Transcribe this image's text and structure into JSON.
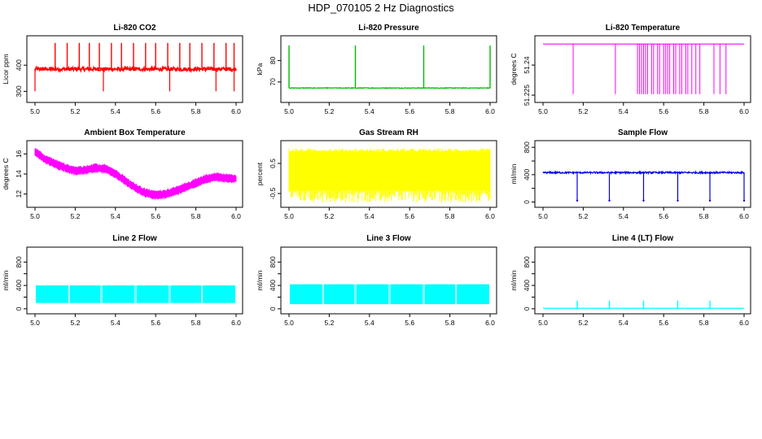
{
  "figure_title": "HDP_070105  2 Hz Diagnostics",
  "chart_data": [
    {
      "type": "line",
      "title": "Li-820 CO2",
      "xlabel": "",
      "ylabel": "Licor ppm",
      "color": "#ff0000",
      "xlim": [
        5.0,
        6.0
      ],
      "ylim": [
        270,
        500
      ],
      "x_ticks": [
        5.0,
        5.2,
        5.4,
        5.6,
        5.8,
        6.0
      ],
      "y_ticks": [
        300,
        400
      ],
      "series": [
        {
          "name": "CO2",
          "baseline": 385,
          "noise": 7,
          "spikes_up": [
            5.1,
            5.16,
            5.22,
            5.27,
            5.32,
            5.38,
            5.43,
            5.49,
            5.55,
            5.6,
            5.66,
            5.72,
            5.77,
            5.83,
            5.89,
            5.95,
            5.99
          ],
          "spike_up_value": 485,
          "spikes_down": [
            5.0,
            5.34,
            5.67,
            5.9,
            5.99
          ],
          "spike_down_value": 300
        }
      ]
    },
    {
      "type": "line",
      "title": "Li-820 Pressure",
      "xlabel": "",
      "ylabel": "kPa",
      "color": "#00bb00",
      "xlim": [
        5.0,
        6.0
      ],
      "ylim": [
        62,
        90
      ],
      "x_ticks": [
        5.0,
        5.2,
        5.4,
        5.6,
        5.8,
        6.0
      ],
      "y_ticks": [
        70,
        80
      ],
      "series": [
        {
          "name": "Pressure",
          "baseline": 67.2,
          "noise": 0.15,
          "spikes_up": [
            5.0,
            5.33,
            5.67,
            6.0
          ],
          "spike_up_value": 87
        }
      ]
    },
    {
      "type": "line",
      "title": "Li-820 Temperature",
      "xlabel": "",
      "ylabel": "degrees C",
      "color": "#ff00ff",
      "xlim": [
        5.0,
        6.0
      ],
      "ylim": [
        51.223,
        51.253
      ],
      "x_ticks": [
        5.0,
        5.2,
        5.4,
        5.6,
        5.8,
        6.0
      ],
      "y_ticks": [
        51.225,
        51.24
      ],
      "series": [
        {
          "name": "Temperature",
          "baseline": 51.2505,
          "drops": [
            5.15,
            5.36,
            5.47,
            5.48,
            5.49,
            5.5,
            5.51,
            5.52,
            5.54,
            5.55,
            5.57,
            5.58,
            5.6,
            5.61,
            5.62,
            5.63,
            5.65,
            5.66,
            5.68,
            5.69,
            5.71,
            5.72,
            5.74,
            5.76,
            5.78,
            5.85,
            5.88,
            5.91
          ],
          "drop_value": 51.2255
        }
      ]
    },
    {
      "type": "line",
      "title": "Ambient Box Temperature",
      "xlabel": "",
      "ylabel": "degrees C",
      "color": "#ff00ff",
      "xlim": [
        5.0,
        6.0
      ],
      "ylim": [
        11,
        17
      ],
      "x_ticks": [
        5.0,
        5.2,
        5.4,
        5.6,
        5.8,
        6.0
      ],
      "y_ticks": [
        12,
        14,
        16
      ],
      "series": [
        {
          "name": "Box Temperature",
          "x": [
            5.0,
            5.05,
            5.1,
            5.15,
            5.2,
            5.25,
            5.3,
            5.35,
            5.4,
            5.45,
            5.5,
            5.55,
            5.6,
            5.65,
            5.7,
            5.75,
            5.8,
            5.85,
            5.9,
            5.95,
            6.0
          ],
          "y": [
            16.2,
            15.5,
            15.0,
            14.6,
            14.3,
            14.4,
            14.6,
            14.5,
            14.0,
            13.3,
            12.6,
            12.1,
            11.9,
            12.0,
            12.3,
            12.7,
            13.1,
            13.5,
            13.7,
            13.6,
            13.5
          ],
          "noise": 0.35
        }
      ]
    },
    {
      "type": "line",
      "title": "Gas Stream RH",
      "xlabel": "",
      "ylabel": "percent",
      "color": "#ffff00",
      "xlim": [
        5.0,
        6.0
      ],
      "ylim": [
        -0.85,
        1.15
      ],
      "x_ticks": [
        5.0,
        5.2,
        5.4,
        5.6,
        5.8,
        6.0
      ],
      "y_ticks": [
        -0.5,
        0.5
      ],
      "series": [
        {
          "name": "RH",
          "low": -0.4,
          "high": 0.9,
          "min_extreme": -0.8,
          "max_extreme": 1.0
        }
      ]
    },
    {
      "type": "line",
      "title": "Sample Flow",
      "xlabel": "",
      "ylabel": "ml/min",
      "color": "#0000dd",
      "xlim": [
        5.0,
        6.0
      ],
      "ylim": [
        -30,
        850
      ],
      "x_ticks": [
        5.0,
        5.2,
        5.4,
        5.6,
        5.8,
        6.0
      ],
      "y_ticks": [
        0,
        200,
        400,
        600,
        800
      ],
      "y_tick_labels": [
        "0",
        "",
        "400",
        "",
        "800"
      ],
      "series": [
        {
          "name": "Sample Flow",
          "baseline": 430,
          "noise": 12,
          "dips": [
            5.17,
            5.33,
            5.5,
            5.67,
            5.83,
            6.0
          ],
          "dip_value": 20
        }
      ]
    },
    {
      "type": "area",
      "title": "Line 2 Flow",
      "xlabel": "",
      "ylabel": "ml/min",
      "color": "#00ffff",
      "xlim": [
        5.0,
        6.0
      ],
      "ylim": [
        -30,
        1000
      ],
      "x_ticks": [
        5.0,
        5.2,
        5.4,
        5.6,
        5.8,
        6.0
      ],
      "y_ticks": [
        0,
        200,
        400,
        600,
        800
      ],
      "y_tick_labels": [
        "0",
        "",
        "400",
        "",
        "800"
      ],
      "series": [
        {
          "name": "Line 2 Flow",
          "low": 100,
          "high": 400,
          "gaps": [
            5.17,
            5.33,
            5.5,
            5.67,
            5.83
          ]
        }
      ]
    },
    {
      "type": "area",
      "title": "Line 3 Flow",
      "xlabel": "",
      "ylabel": "ml/min",
      "color": "#00ffff",
      "xlim": [
        5.0,
        6.0
      ],
      "ylim": [
        -30,
        1000
      ],
      "x_ticks": [
        5.0,
        5.2,
        5.4,
        5.6,
        5.8,
        6.0
      ],
      "y_ticks": [
        0,
        200,
        400,
        600,
        800
      ],
      "y_tick_labels": [
        "0",
        "",
        "400",
        "",
        "800"
      ],
      "series": [
        {
          "name": "Line 3 Flow",
          "low": 80,
          "high": 420,
          "gaps": [
            5.17,
            5.33,
            5.5,
            5.67,
            5.83
          ]
        }
      ]
    },
    {
      "type": "line",
      "title": "Line 4 (LT) Flow",
      "xlabel": "",
      "ylabel": "ml/min",
      "color": "#00ffff",
      "xlim": [
        5.0,
        6.0
      ],
      "ylim": [
        -30,
        1000
      ],
      "x_ticks": [
        5.0,
        5.2,
        5.4,
        5.6,
        5.8,
        6.0
      ],
      "y_ticks": [
        0,
        200,
        400,
        600,
        800
      ],
      "y_tick_labels": [
        "0",
        "",
        "400",
        "",
        "800"
      ],
      "series": [
        {
          "name": "Line 4 Flow",
          "baseline": 8,
          "spikes_up": [
            5.17,
            5.33,
            5.5,
            5.67,
            5.83
          ],
          "spike_up_value": 140
        }
      ]
    }
  ]
}
